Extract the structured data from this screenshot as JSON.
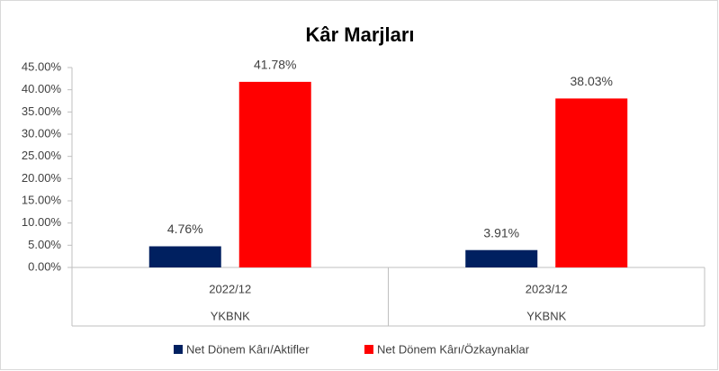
{
  "chart_data": {
    "type": "bar",
    "title": "Kâr Marjları",
    "categories": [
      "2022/12",
      "2023/12"
    ],
    "group_labels": [
      "YKBNK",
      "YKBNK"
    ],
    "series": [
      {
        "name": "Net Dönem Kârı/Aktifler",
        "color": "#002060",
        "values": [
          4.76,
          3.91
        ],
        "value_labels": [
          "4.76%",
          "3.91%"
        ]
      },
      {
        "name": "Net Dönem Kârı/Özkaynaklar",
        "color": "#ff0000",
        "values": [
          41.78,
          38.03
        ],
        "value_labels": [
          "41.78%",
          "38.03%"
        ]
      }
    ],
    "ylim": [
      0,
      45
    ],
    "yticks": [
      {
        "value": 0,
        "label": "0.00%"
      },
      {
        "value": 5,
        "label": "5.00%"
      },
      {
        "value": 10,
        "label": "10.00%"
      },
      {
        "value": 15,
        "label": "15.00%"
      },
      {
        "value": 20,
        "label": "20.00%"
      },
      {
        "value": 25,
        "label": "25.00%"
      },
      {
        "value": 30,
        "label": "30.00%"
      },
      {
        "value": 35,
        "label": "35.00%"
      },
      {
        "value": 40,
        "label": "40.00%"
      },
      {
        "value": 45,
        "label": "45.00%"
      }
    ],
    "grid": false,
    "legend": "bottom"
  }
}
